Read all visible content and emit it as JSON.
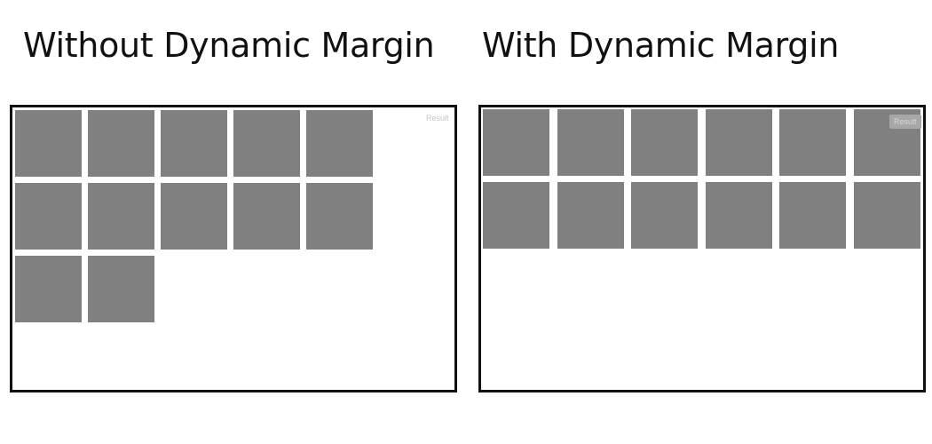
{
  "panels": {
    "left": {
      "title": "Without Dynamic Margin",
      "result_label": "Result",
      "tile_count": 12,
      "columns": 5
    },
    "right": {
      "title": "With Dynamic Margin",
      "result_label": "Result",
      "tile_count": 12,
      "columns": 6
    }
  },
  "colors": {
    "tile": "#808080",
    "frame_border": "#111111",
    "background": "#ffffff"
  }
}
